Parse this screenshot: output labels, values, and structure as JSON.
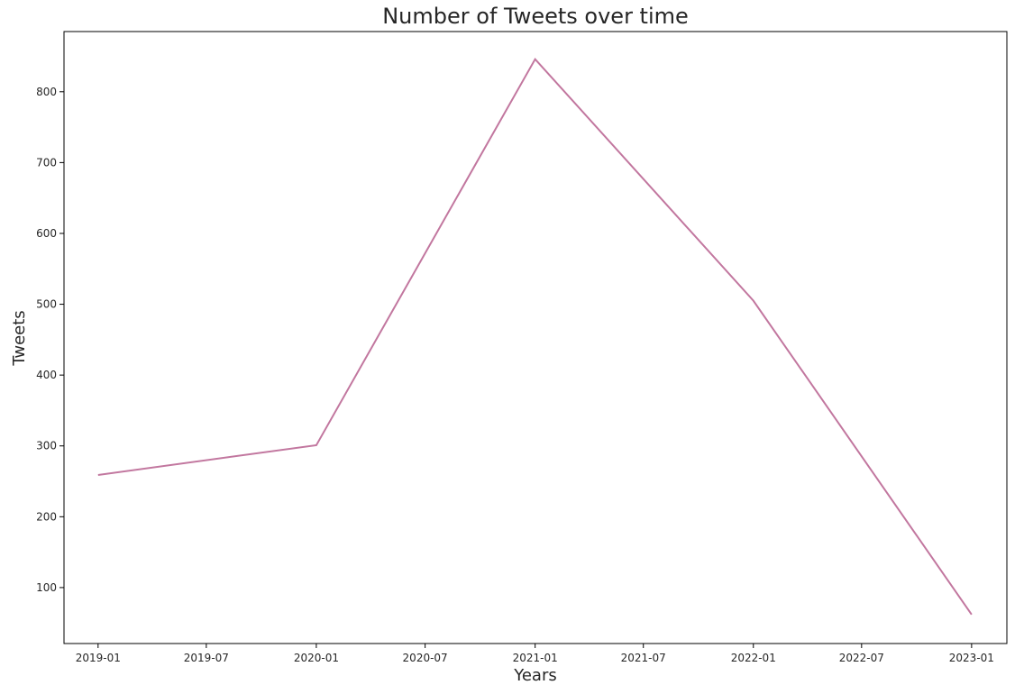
{
  "chart_data": {
    "type": "line",
    "title": "Number of Tweets over time",
    "xlabel": "Years",
    "ylabel": "Tweets",
    "x_ticks": [
      "2019-01",
      "2019-07",
      "2020-01",
      "2020-07",
      "2021-01",
      "2021-07",
      "2022-01",
      "2022-07",
      "2023-01"
    ],
    "y_ticks": [
      100,
      200,
      300,
      400,
      500,
      600,
      700,
      800
    ],
    "xlim": [
      "2018-11-05",
      "2023-03-01"
    ],
    "ylim": [
      21,
      885
    ],
    "grid": false,
    "legend": "none",
    "series": [
      {
        "color": "#c2779f",
        "x": [
          "2019-01-01",
          "2020-01-01",
          "2021-01-01",
          "2022-01-01",
          "2023-01-01"
        ],
        "y": [
          259,
          301,
          846,
          505,
          62
        ]
      }
    ]
  }
}
